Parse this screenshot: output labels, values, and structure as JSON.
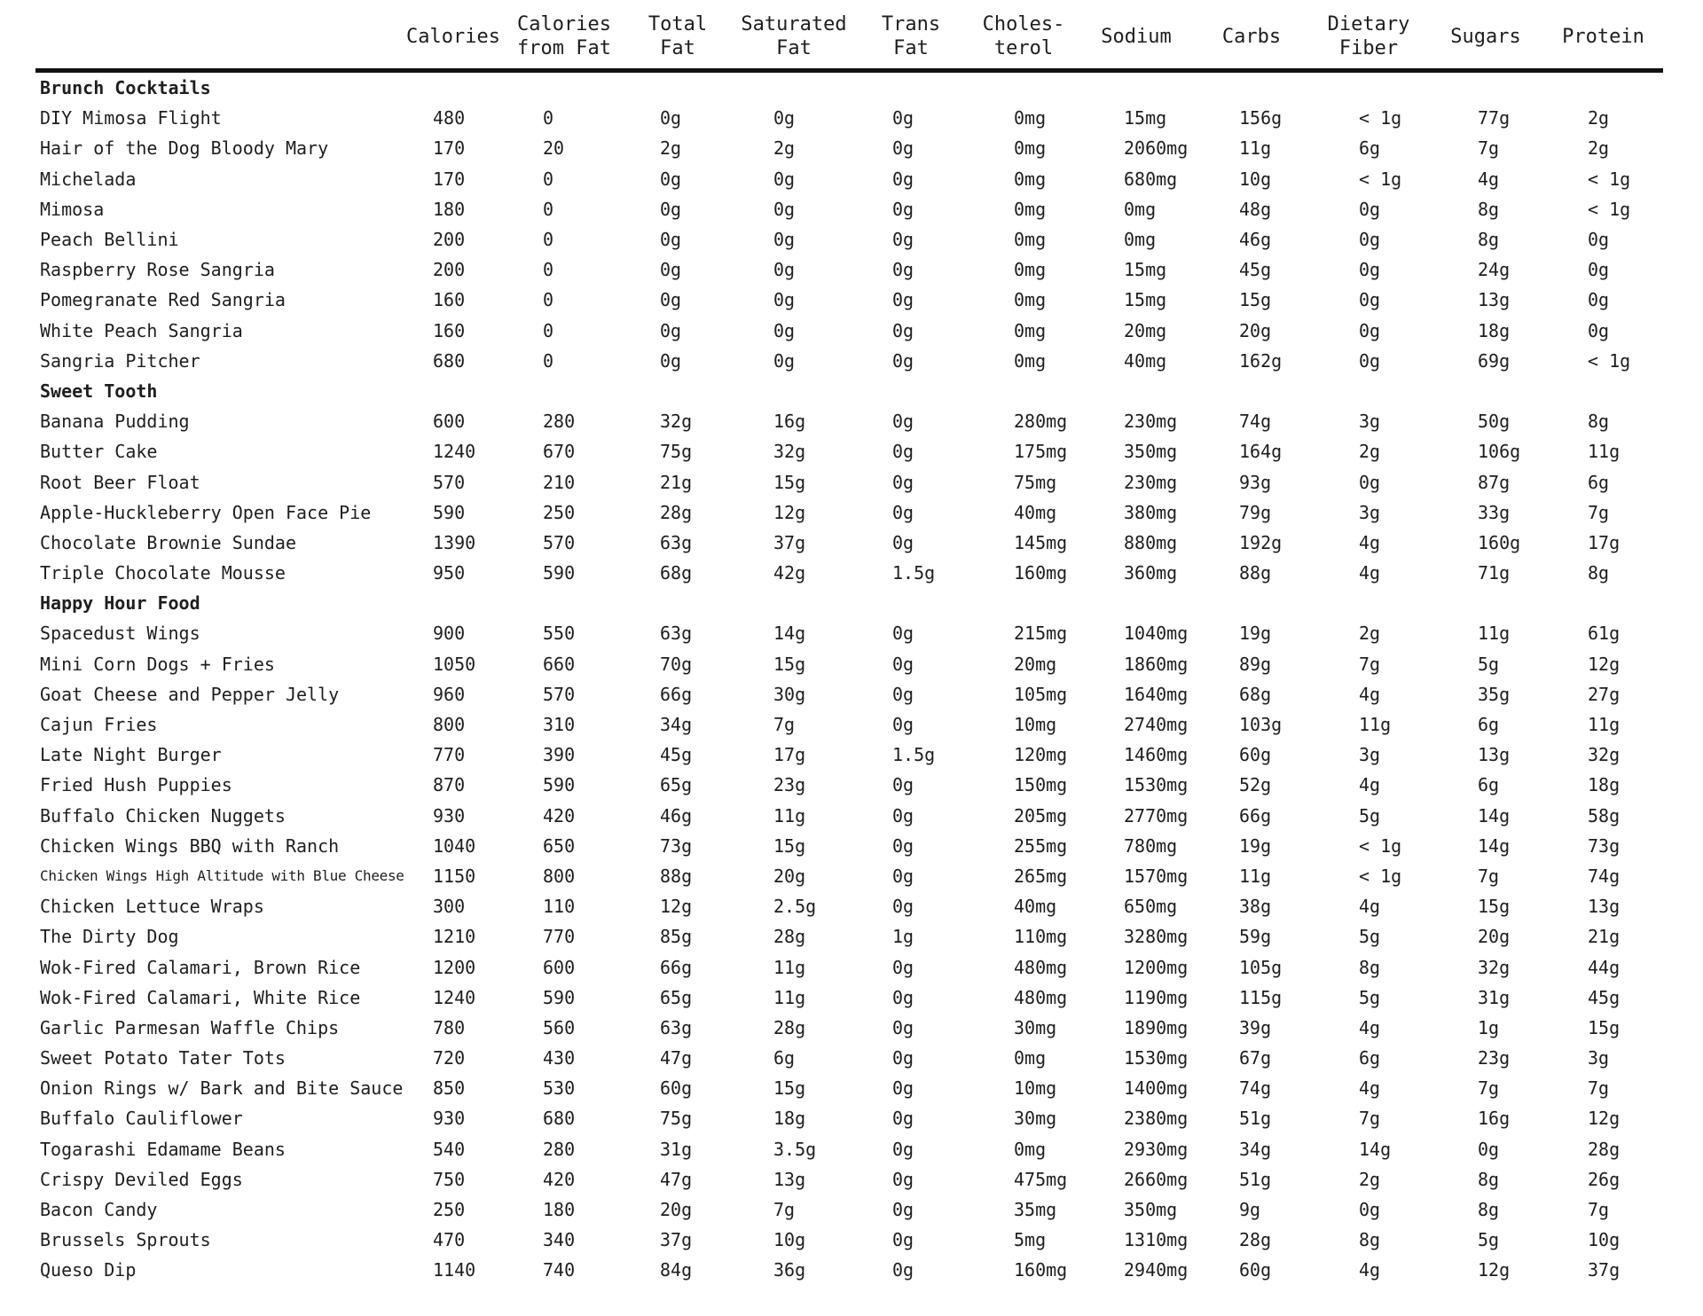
{
  "page": {
    "background": "#ffffff",
    "text_color": "#1e1e1e",
    "header_rule_color": "#111111"
  },
  "table": {
    "columns": [
      {
        "key": "item",
        "label": ""
      },
      {
        "key": "calories",
        "label": "Calories"
      },
      {
        "key": "calories-from-fat",
        "label": "Calories\nfrom Fat"
      },
      {
        "key": "total-fat",
        "label": "Total\nFat"
      },
      {
        "key": "saturated-fat",
        "label": "Saturated\nFat"
      },
      {
        "key": "trans-fat",
        "label": "Trans\nFat"
      },
      {
        "key": "cholesterol",
        "label": "Choles-\nterol"
      },
      {
        "key": "sodium",
        "label": "Sodium"
      },
      {
        "key": "carbs",
        "label": "Carbs"
      },
      {
        "key": "dietary-fiber",
        "label": "Dietary\nFiber"
      },
      {
        "key": "sugars",
        "label": "Sugars"
      },
      {
        "key": "protein",
        "label": "Protein"
      }
    ],
    "sections": [
      {
        "title": "Brunch Cocktails",
        "rows": [
          {
            "name": "DIY Mimosa Flight",
            "values": [
              "480",
              "0",
              "0g",
              "0g",
              "0g",
              "0mg",
              "15mg",
              "156g",
              "< 1g",
              "77g",
              "2g"
            ]
          },
          {
            "name": "Hair of the Dog Bloody Mary",
            "values": [
              "170",
              "20",
              "2g",
              "2g",
              "0g",
              "0mg",
              "2060mg",
              "11g",
              "6g",
              "7g",
              "2g"
            ]
          },
          {
            "name": "Michelada",
            "values": [
              "170",
              "0",
              "0g",
              "0g",
              "0g",
              "0mg",
              "680mg",
              "10g",
              "< 1g",
              "4g",
              "< 1g"
            ]
          },
          {
            "name": "Mimosa",
            "values": [
              "180",
              "0",
              "0g",
              "0g",
              "0g",
              "0mg",
              "0mg",
              "48g",
              "0g",
              "8g",
              "< 1g"
            ]
          },
          {
            "name": "Peach Bellini",
            "values": [
              "200",
              "0",
              "0g",
              "0g",
              "0g",
              "0mg",
              "0mg",
              "46g",
              "0g",
              "8g",
              "0g"
            ]
          },
          {
            "name": "Raspberry Rose Sangria",
            "values": [
              "200",
              "0",
              "0g",
              "0g",
              "0g",
              "0mg",
              "15mg",
              "45g",
              "0g",
              "24g",
              "0g"
            ]
          },
          {
            "name": "Pomegranate Red Sangria",
            "values": [
              "160",
              "0",
              "0g",
              "0g",
              "0g",
              "0mg",
              "15mg",
              "15g",
              "0g",
              "13g",
              "0g"
            ]
          },
          {
            "name": "White Peach Sangria",
            "values": [
              "160",
              "0",
              "0g",
              "0g",
              "0g",
              "0mg",
              "20mg",
              "20g",
              "0g",
              "18g",
              "0g"
            ]
          },
          {
            "name": "Sangria Pitcher",
            "values": [
              "680",
              "0",
              "0g",
              "0g",
              "0g",
              "0mg",
              "40mg",
              "162g",
              "0g",
              "69g",
              "< 1g"
            ]
          }
        ]
      },
      {
        "title": "Sweet Tooth",
        "rows": [
          {
            "name": "Banana Pudding",
            "values": [
              "600",
              "280",
              "32g",
              "16g",
              "0g",
              "280mg",
              "230mg",
              "74g",
              "3g",
              "50g",
              "8g"
            ]
          },
          {
            "name": "Butter Cake",
            "values": [
              "1240",
              "670",
              "75g",
              "32g",
              "0g",
              "175mg",
              "350mg",
              "164g",
              "2g",
              "106g",
              "11g"
            ]
          },
          {
            "name": "Root Beer Float",
            "values": [
              "570",
              "210",
              "21g",
              "15g",
              "0g",
              "75mg",
              "230mg",
              "93g",
              "0g",
              "87g",
              "6g"
            ]
          },
          {
            "name": "Apple-Huckleberry Open Face Pie",
            "values": [
              "590",
              "250",
              "28g",
              "12g",
              "0g",
              "40mg",
              "380mg",
              "79g",
              "3g",
              "33g",
              "7g"
            ]
          },
          {
            "name": "Chocolate Brownie Sundae",
            "values": [
              "1390",
              "570",
              "63g",
              "37g",
              "0g",
              "145mg",
              "880mg",
              "192g",
              "4g",
              "160g",
              "17g"
            ]
          },
          {
            "name": "Triple Chocolate Mousse",
            "values": [
              "950",
              "590",
              "68g",
              "42g",
              "1.5g",
              "160mg",
              "360mg",
              "88g",
              "4g",
              "71g",
              "8g"
            ]
          }
        ]
      },
      {
        "title": "Happy Hour Food",
        "rows": [
          {
            "name": "Spacedust Wings",
            "values": [
              "900",
              "550",
              "63g",
              "14g",
              "0g",
              "215mg",
              "1040mg",
              "19g",
              "2g",
              "11g",
              "61g"
            ]
          },
          {
            "name": "Mini Corn Dogs + Fries",
            "values": [
              "1050",
              "660",
              "70g",
              "15g",
              "0g",
              "20mg",
              "1860mg",
              "89g",
              "7g",
              "5g",
              "12g"
            ]
          },
          {
            "name": "Goat Cheese and Pepper Jelly",
            "values": [
              "960",
              "570",
              "66g",
              "30g",
              "0g",
              "105mg",
              "1640mg",
              "68g",
              "4g",
              "35g",
              "27g"
            ]
          },
          {
            "name": "Cajun Fries",
            "values": [
              "800",
              "310",
              "34g",
              "7g",
              "0g",
              "10mg",
              "2740mg",
              "103g",
              "11g",
              "6g",
              "11g"
            ]
          },
          {
            "name": "Late Night Burger",
            "values": [
              "770",
              "390",
              "45g",
              "17g",
              "1.5g",
              "120mg",
              "1460mg",
              "60g",
              "3g",
              "13g",
              "32g"
            ]
          },
          {
            "name": "Fried Hush Puppies",
            "values": [
              "870",
              "590",
              "65g",
              "23g",
              "0g",
              "150mg",
              "1530mg",
              "52g",
              "4g",
              "6g",
              "18g"
            ]
          },
          {
            "name": "Buffalo Chicken Nuggets",
            "values": [
              "930",
              "420",
              "46g",
              "11g",
              "0g",
              "205mg",
              "2770mg",
              "66g",
              "5g",
              "14g",
              "58g"
            ]
          },
          {
            "name": "Chicken Wings BBQ with Ranch",
            "values": [
              "1040",
              "650",
              "73g",
              "15g",
              "0g",
              "255mg",
              "780mg",
              "19g",
              "< 1g",
              "14g",
              "73g"
            ]
          },
          {
            "name": "Chicken Wings High Altitude with Blue Cheese",
            "values": [
              "1150",
              "800",
              "88g",
              "20g",
              "0g",
              "265mg",
              "1570mg",
              "11g",
              "< 1g",
              "7g",
              "74g"
            ]
          },
          {
            "name": "Chicken Lettuce Wraps",
            "values": [
              "300",
              "110",
              "12g",
              "2.5g",
              "0g",
              "40mg",
              "650mg",
              "38g",
              "4g",
              "15g",
              "13g"
            ]
          },
          {
            "name": "The Dirty Dog",
            "values": [
              "1210",
              "770",
              "85g",
              "28g",
              "1g",
              "110mg",
              "3280mg",
              "59g",
              "5g",
              "20g",
              "21g"
            ]
          },
          {
            "name": "Wok-Fired Calamari, Brown Rice",
            "values": [
              "1200",
              "600",
              "66g",
              "11g",
              "0g",
              "480mg",
              "1200mg",
              "105g",
              "8g",
              "32g",
              "44g"
            ]
          },
          {
            "name": "Wok-Fired Calamari, White Rice",
            "values": [
              "1240",
              "590",
              "65g",
              "11g",
              "0g",
              "480mg",
              "1190mg",
              "115g",
              "5g",
              "31g",
              "45g"
            ]
          },
          {
            "name": "Garlic Parmesan Waffle Chips",
            "values": [
              "780",
              "560",
              "63g",
              "28g",
              "0g",
              "30mg",
              "1890mg",
              "39g",
              "4g",
              "1g",
              "15g"
            ]
          },
          {
            "name": "Sweet Potato Tater Tots",
            "values": [
              "720",
              "430",
              "47g",
              "6g",
              "0g",
              "0mg",
              "1530mg",
              "67g",
              "6g",
              "23g",
              "3g"
            ]
          },
          {
            "name": "Onion Rings w/ Bark and Bite Sauce",
            "values": [
              "850",
              "530",
              "60g",
              "15g",
              "0g",
              "10mg",
              "1400mg",
              "74g",
              "4g",
              "7g",
              "7g"
            ]
          },
          {
            "name": "Buffalo Cauliflower",
            "values": [
              "930",
              "680",
              "75g",
              "18g",
              "0g",
              "30mg",
              "2380mg",
              "51g",
              "7g",
              "16g",
              "12g"
            ]
          },
          {
            "name": "Togarashi Edamame Beans",
            "values": [
              "540",
              "280",
              "31g",
              "3.5g",
              "0g",
              "0mg",
              "2930mg",
              "34g",
              "14g",
              "0g",
              "28g"
            ]
          },
          {
            "name": "Crispy Deviled Eggs",
            "values": [
              "750",
              "420",
              "47g",
              "13g",
              "0g",
              "475mg",
              "2660mg",
              "51g",
              "2g",
              "8g",
              "26g"
            ]
          },
          {
            "name": "Bacon Candy",
            "values": [
              "250",
              "180",
              "20g",
              "7g",
              "0g",
              "35mg",
              "350mg",
              "9g",
              "0g",
              "8g",
              "7g"
            ]
          },
          {
            "name": "Brussels Sprouts",
            "values": [
              "470",
              "340",
              "37g",
              "10g",
              "0g",
              "5mg",
              "1310mg",
              "28g",
              "8g",
              "5g",
              "10g"
            ]
          },
          {
            "name": "Queso Dip",
            "values": [
              "1140",
              "740",
              "84g",
              "36g",
              "0g",
              "160mg",
              "2940mg",
              "60g",
              "4g",
              "12g",
              "37g"
            ]
          }
        ]
      }
    ]
  }
}
